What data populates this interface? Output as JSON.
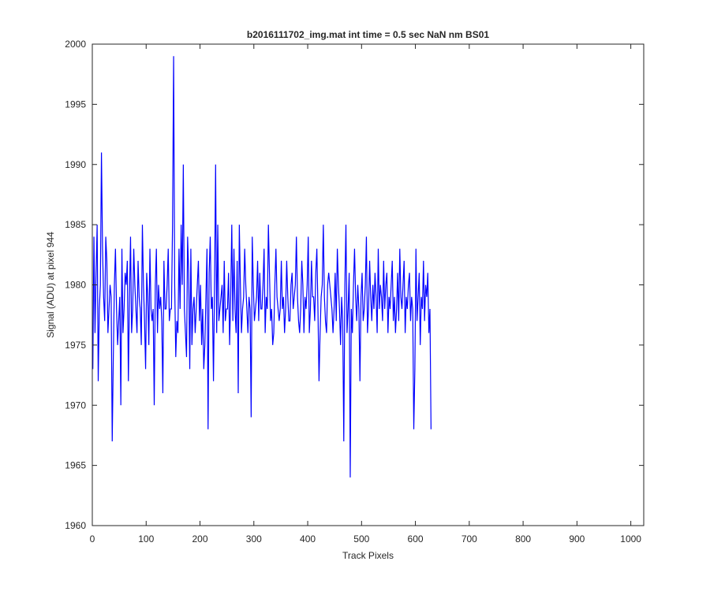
{
  "chart_data": {
    "type": "line",
    "title": "b2016111702_img.mat int time = 0.5 sec  NaN nm BS01",
    "xlabel": "Track Pixels",
    "ylabel": "Signal (ADU) at pixel 944",
    "xlim": [
      0,
      1024
    ],
    "ylim": [
      1960,
      2000
    ],
    "x_ticks": [
      0,
      100,
      200,
      300,
      400,
      500,
      600,
      700,
      800,
      900,
      1000
    ],
    "y_ticks": [
      1960,
      1965,
      1970,
      1975,
      1980,
      1985,
      1990,
      1995,
      2000
    ],
    "grid": false,
    "series": [
      {
        "color": "#0000ff",
        "x_start": 1,
        "x_step": 2,
        "values": [
          1973,
          1984,
          1976,
          1981,
          1985,
          1972,
          1978,
          1980,
          1991,
          1983,
          1979,
          1977,
          1984,
          1982,
          1976,
          1978,
          1980,
          1979,
          1967,
          1974,
          1980,
          1983,
          1978,
          1975,
          1977,
          1979,
          1970,
          1983,
          1976,
          1978,
          1981,
          1980,
          1982,
          1972,
          1979,
          1984,
          1976,
          1978,
          1983,
          1980,
          1978,
          1976,
          1982,
          1979,
          1978,
          1975,
          1985,
          1980,
          1977,
          1973,
          1981,
          1979,
          1975,
          1983,
          1978,
          1977,
          1978,
          1970,
          1980,
          1983,
          1976,
          1980,
          1978,
          1979,
          1977,
          1971,
          1982,
          1978,
          1978,
          1980,
          1983,
          1977,
          1978,
          1978,
          1985,
          1999,
          1980,
          1974,
          1977,
          1976,
          1983,
          1978,
          1985,
          1980,
          1990,
          1978,
          1976,
          1974,
          1984,
          1981,
          1973,
          1983,
          1975,
          1978,
          1979,
          1976,
          1978,
          1980,
          1982,
          1977,
          1980,
          1975,
          1978,
          1973,
          1975,
          1979,
          1983,
          1968,
          1981,
          1984,
          1978,
          1979,
          1972,
          1980,
          1990,
          1976,
          1985,
          1977,
          1978,
          1979,
          1980,
          1976,
          1982,
          1977,
          1978,
          1978,
          1981,
          1975,
          1979,
          1985,
          1977,
          1983,
          1978,
          1976,
          1982,
          1971,
          1985,
          1980,
          1976,
          1978,
          1979,
          1983,
          1980,
          1978,
          1976,
          1979,
          1978,
          1969,
          1984,
          1980,
          1977,
          1978,
          1979,
          1982,
          1977,
          1981,
          1978,
          1978,
          1980,
          1983,
          1976,
          1979,
          1978,
          1985,
          1981,
          1977,
          1978,
          1975,
          1976,
          1980,
          1983,
          1979,
          1978,
          1977,
          1978,
          1982,
          1978,
          1979,
          1976,
          1978,
          1982,
          1979,
          1977,
          1977,
          1980,
          1981,
          1978,
          1979,
          1980,
          1984,
          1979,
          1977,
          1976,
          1978,
          1982,
          1980,
          1976,
          1979,
          1978,
          1980,
          1984,
          1976,
          1978,
          1982,
          1979,
          1979,
          1977,
          1981,
          1983,
          1978,
          1972,
          1976,
          1979,
          1980,
          1985,
          1979,
          1977,
          1976,
          1980,
          1981,
          1980,
          1979,
          1978,
          1976,
          1978,
          1981,
          1977,
          1983,
          1980,
          1978,
          1975,
          1979,
          1977,
          1967,
          1980,
          1985,
          1976,
          1978,
          1981,
          1964,
          1978,
          1976,
          1980,
          1983,
          1979,
          1977,
          1980,
          1978,
          1972,
          1979,
          1981,
          1977,
          1978,
          1980,
          1984,
          1976,
          1978,
          1982,
          1979,
          1977,
          1980,
          1978,
          1981,
          1979,
          1976,
          1983,
          1978,
          1980,
          1979,
          1977,
          1982,
          1978,
          1980,
          1981,
          1976,
          1979,
          1978,
          1980,
          1982,
          1977,
          1979,
          1976,
          1978,
          1981,
          1977,
          1983,
          1979,
          1978,
          1980,
          1982,
          1976,
          1979,
          1978,
          1980,
          1981,
          1977,
          1979,
          1978,
          1968,
          1973,
          1983,
          1977,
          1979,
          1981,
          1975,
          1979,
          1978,
          1982,
          1977,
          1980,
          1979,
          1981,
          1976,
          1978,
          1968
        ]
      }
    ]
  }
}
